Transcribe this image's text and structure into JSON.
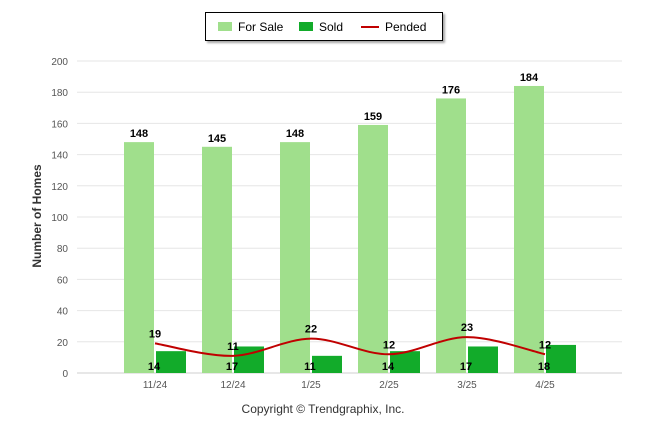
{
  "legend": {
    "for_sale_label": "For Sale",
    "sold_label": "Sold",
    "pended_label": "Pended"
  },
  "colors": {
    "for_sale": "#a0df8c",
    "sold": "#12ab2a",
    "pended": "#c00000"
  },
  "copyright": "Copyright © Trendgraphix, Inc.",
  "chart_data": {
    "type": "bar",
    "ylabel": "Number of Homes",
    "xlabel": "",
    "ylim": [
      0,
      200
    ],
    "yticks": [
      0,
      20,
      40,
      60,
      80,
      100,
      120,
      140,
      160,
      180,
      200
    ],
    "categories": [
      "11/24",
      "12/24",
      "1/25",
      "2/25",
      "3/25",
      "4/25"
    ],
    "series": [
      {
        "name": "For Sale",
        "kind": "bar",
        "values": [
          148,
          145,
          148,
          159,
          176,
          184
        ]
      },
      {
        "name": "Sold",
        "kind": "bar",
        "values": [
          14,
          17,
          11,
          14,
          17,
          18
        ]
      },
      {
        "name": "Pended",
        "kind": "line",
        "values": [
          19,
          11,
          22,
          12,
          23,
          12
        ]
      }
    ],
    "grid": true,
    "legend_position": "top"
  }
}
